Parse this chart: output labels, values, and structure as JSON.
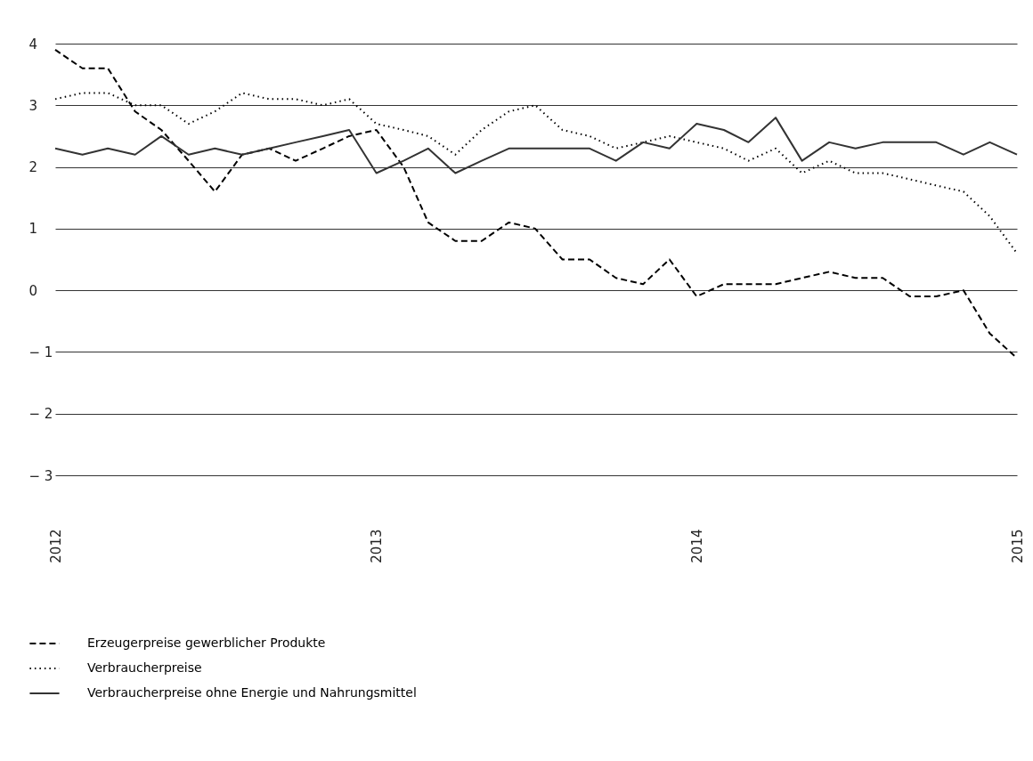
{
  "chart_data": {
    "type": "line",
    "x": [
      "2012-01",
      "2012-02",
      "2012-03",
      "2012-04",
      "2012-05",
      "2012-06",
      "2012-07",
      "2012-08",
      "2012-09",
      "2012-10",
      "2012-11",
      "2012-12",
      "2013-01",
      "2013-02",
      "2013-03",
      "2013-04",
      "2013-05",
      "2013-06",
      "2013-07",
      "2013-08",
      "2013-09",
      "2013-10",
      "2013-11",
      "2013-12",
      "2014-01",
      "2014-02",
      "2014-03",
      "2014-04",
      "2014-05",
      "2014-06",
      "2014-07",
      "2014-08",
      "2014-09",
      "2014-10",
      "2014-11",
      "2014-12",
      "2015-01"
    ],
    "xlim": [
      "2012-01",
      "2015-01"
    ],
    "xticks": [
      "2012",
      "2013",
      "2014",
      "2015"
    ],
    "ylim": [
      -3,
      4
    ],
    "yticks": [
      -3,
      -2,
      -1,
      0,
      1,
      2,
      3,
      4
    ],
    "grid": "y",
    "legend": "bottom left",
    "series": [
      {
        "name": "Erzeugerpreise gewerblicher Produkte",
        "color": "#000000",
        "line_style": "dashed",
        "values": [
          3.9,
          3.6,
          3.6,
          2.9,
          2.6,
          2.1,
          1.6,
          2.2,
          2.3,
          2.1,
          2.3,
          2.5,
          2.6,
          2.0,
          1.1,
          0.8,
          0.8,
          1.1,
          1.0,
          0.5,
          0.5,
          0.2,
          0.1,
          0.5,
          -0.1,
          0.1,
          0.1,
          0.1,
          0.2,
          0.3,
          0.2,
          0.2,
          -0.1,
          -0.1,
          0.0,
          -0.7,
          -1.1
        ]
      },
      {
        "name": "Verbraucherpreise",
        "color": "#000000",
        "line_style": "dotted",
        "values": [
          3.1,
          3.2,
          3.2,
          3.0,
          3.0,
          2.7,
          2.9,
          3.2,
          3.1,
          3.1,
          3.0,
          3.1,
          2.7,
          2.6,
          2.5,
          2.2,
          2.6,
          2.9,
          3.0,
          2.6,
          2.5,
          2.3,
          2.4,
          2.5,
          2.4,
          2.3,
          2.1,
          2.3,
          1.9,
          2.1,
          1.9,
          1.9,
          1.8,
          1.7,
          1.6,
          1.2,
          0.6
        ]
      },
      {
        "name": "Verbraucherpreise ohne Energie und Nahrungsmittel",
        "color": "#333333",
        "line_style": "solid",
        "values": [
          2.3,
          2.2,
          2.3,
          2.2,
          2.5,
          2.2,
          2.3,
          2.2,
          2.3,
          2.4,
          2.5,
          2.6,
          1.9,
          2.1,
          2.3,
          1.9,
          2.1,
          2.3,
          2.3,
          2.3,
          2.3,
          2.1,
          2.4,
          2.3,
          2.7,
          2.6,
          2.4,
          2.8,
          2.1,
          2.4,
          2.3,
          2.4,
          2.4,
          2.4,
          2.2,
          2.4,
          2.2
        ]
      }
    ]
  }
}
